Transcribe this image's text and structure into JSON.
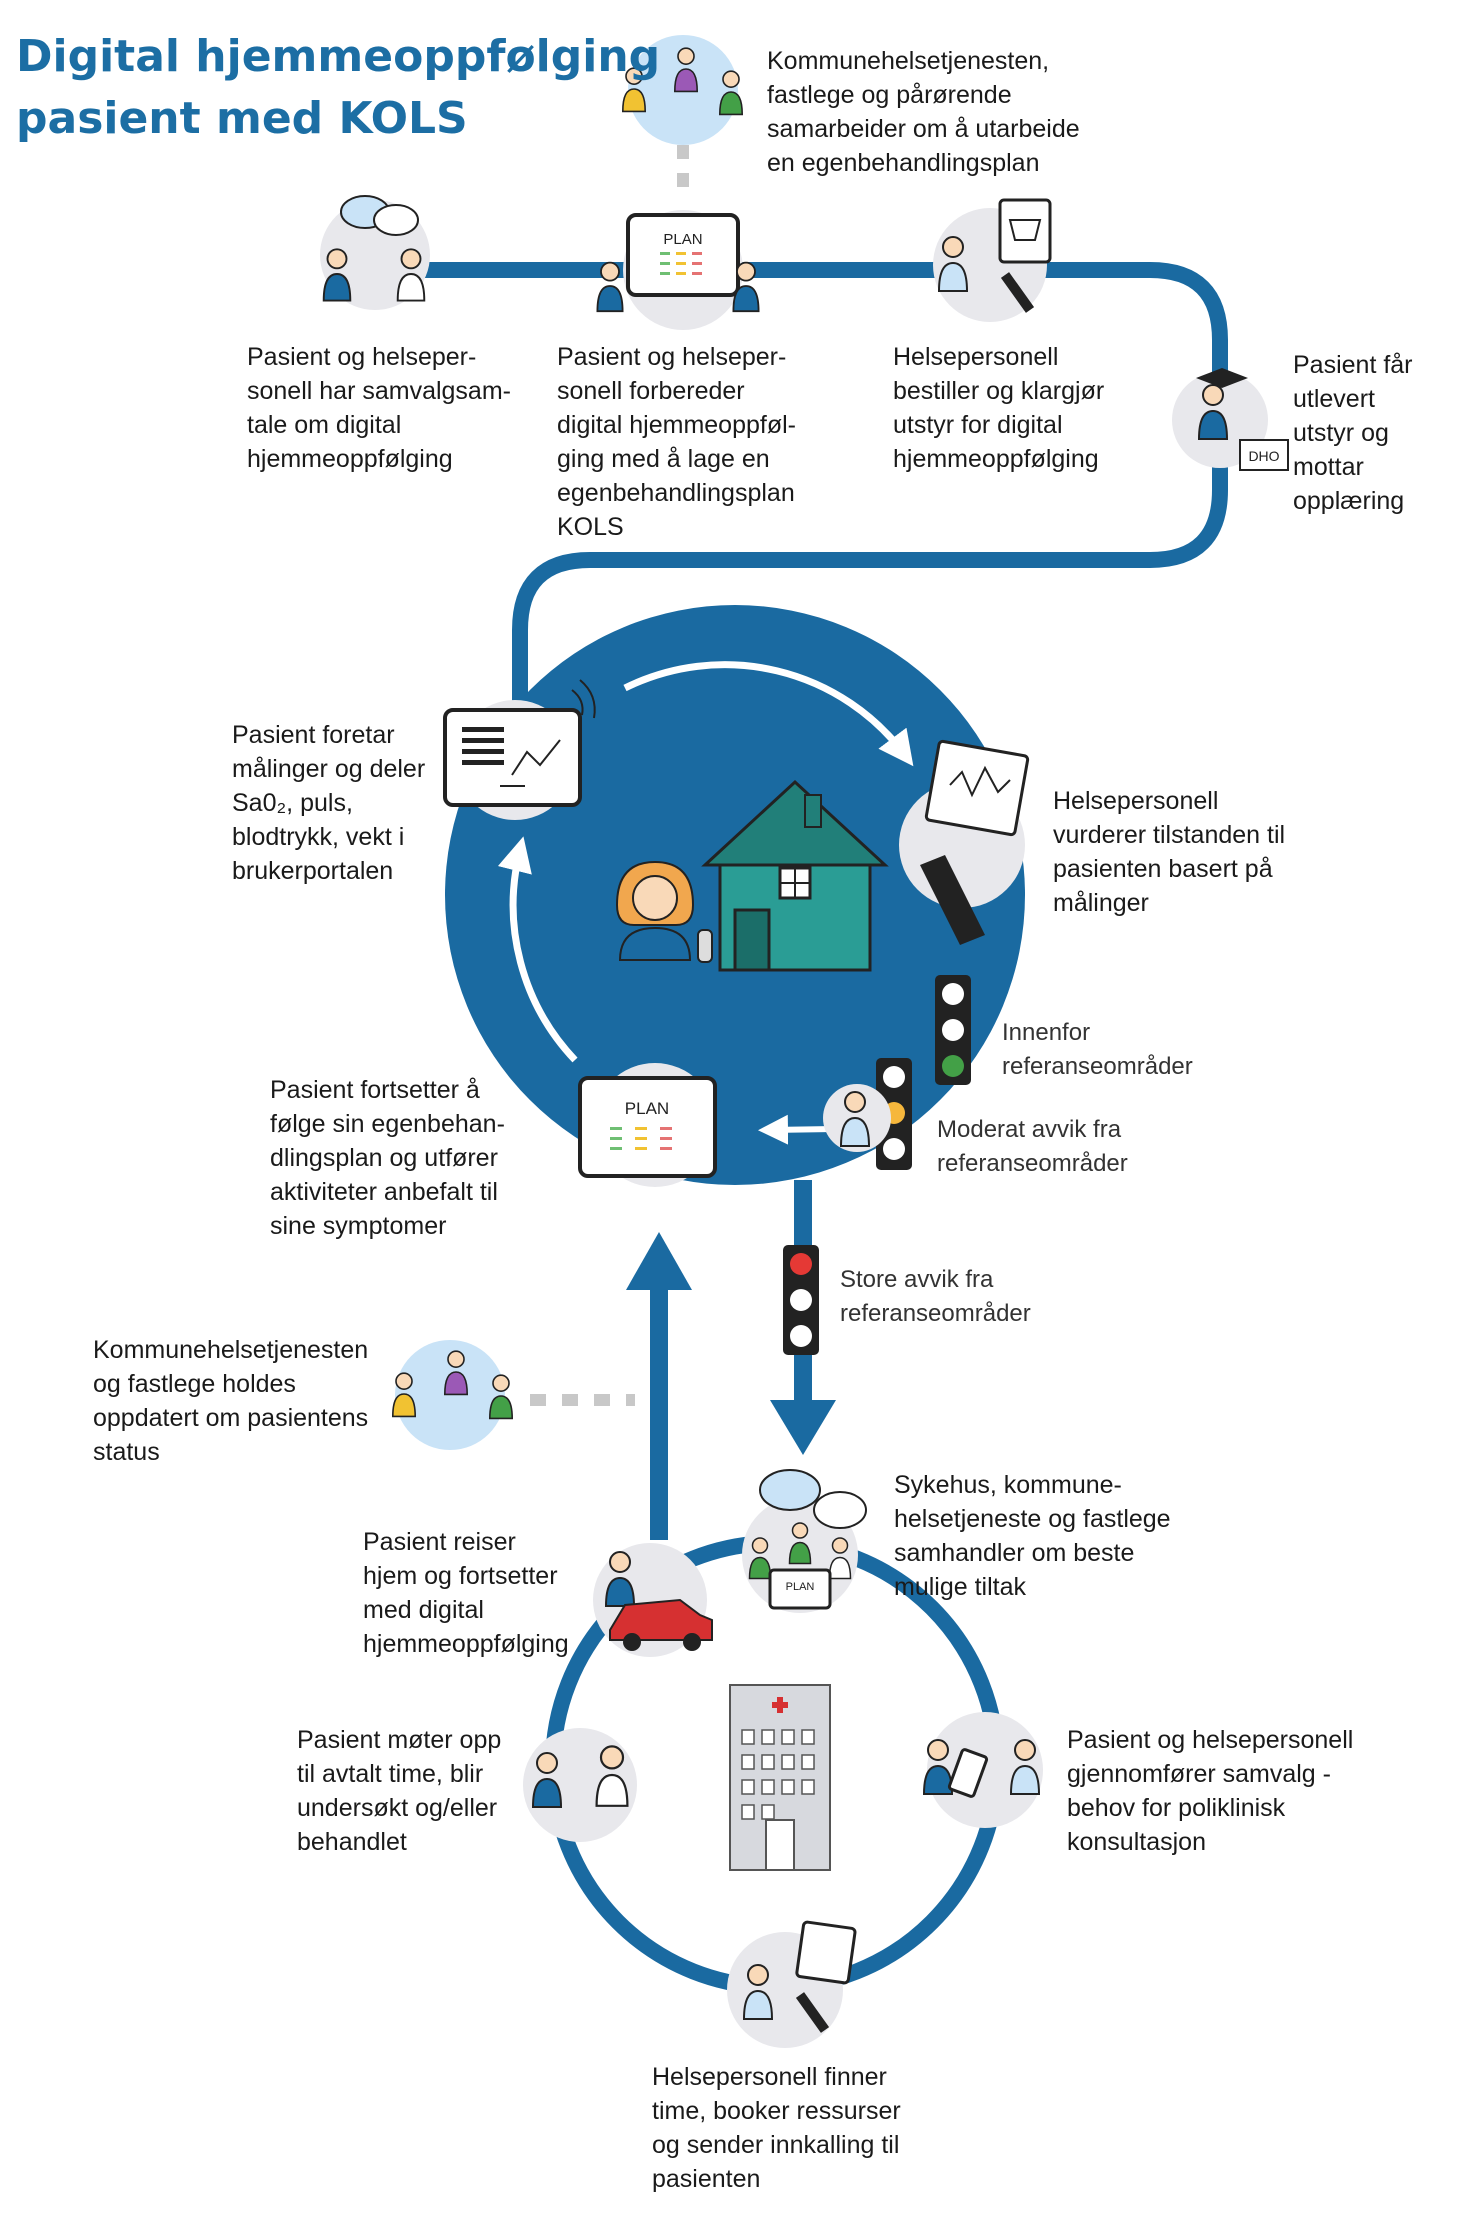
{
  "title": {
    "line1": "Digital hjemmeoppfølging",
    "line2": "pasient med KOLS"
  },
  "colors": {
    "title": "#1c6ea4",
    "flow_line": "#1a6aa1",
    "big_circle": "#1a6aa1",
    "node_circle": "#e8e8ec",
    "collab_circle": "#c9e3f7",
    "house": "#2a9d95",
    "car": "#d63031",
    "light_red": "#e53935",
    "light_yellow": "#f6b73c",
    "light_green": "#43a047",
    "plan_red": "#e57373",
    "plan_yellow": "#f1c232",
    "plan_green": "#6fbf73"
  },
  "steps": {
    "collab_top": {
      "icon": "three-people-icon",
      "lines": [
        "Kommunehelsetjenesten,",
        "fastlege og pårørende",
        "samarbeider om å utarbeide",
        "en egenbehandlingsplan"
      ]
    },
    "shared_decision": {
      "icon": "conversation-icon",
      "lines": [
        "Pasient og helseper-",
        "sonell har samvalgsam-",
        "tale om digital",
        "hjemmeoppfølging"
      ]
    },
    "plan_prep": {
      "icon": "plan-tablet-icon",
      "plan_text": "PLAN",
      "lines": [
        "Pasient og helseper-",
        "sonell forbereder",
        "digital hjemmeoppføl-",
        "ging med å lage en",
        "egenbehandlingsplan",
        "KOLS"
      ]
    },
    "order_equipment": {
      "icon": "shopping-cart-computer-icon",
      "lines": [
        "Helsepersonell",
        "bestiller og klargjør",
        "utstyr for digital",
        "hjemmeoppfølging"
      ]
    },
    "training": {
      "icon": "graduation-cap-icon",
      "badge": "DHO",
      "lines": [
        "Pasient får",
        "utlevert",
        "utstyr og",
        "mottar",
        "opplæring"
      ]
    },
    "measurements": {
      "icon": "tablet-chart-icon",
      "lines": [
        "Pasient foretar",
        "målinger og deler",
        "Sa0₂, puls,",
        "blodtrykk, vekt i",
        "brukerportalen"
      ]
    },
    "assessment": {
      "icon": "monitor-graph-icon",
      "lines": [
        "Helsepersonell",
        "vurderer tilstanden til",
        "pasienten basert på",
        "målinger"
      ]
    },
    "within_range": {
      "icon": "traffic-light-green-icon",
      "lines": [
        "Innenfor",
        "referanseområder"
      ]
    },
    "moderate": {
      "icon": "traffic-light-yellow-icon",
      "lines": [
        "Moderat avvik fra",
        "referanseområder"
      ]
    },
    "large": {
      "icon": "traffic-light-red-icon",
      "lines": [
        "Store avvik fra",
        "referanseområder"
      ]
    },
    "continue_plan": {
      "icon": "plan-tablet-icon",
      "plan_text": "PLAN",
      "lines": [
        "Pasient fortsetter å",
        "følge sin egenbehan-",
        "dlingsplan og utfører",
        "aktiviteter anbefalt til",
        "sine symptomer"
      ]
    },
    "informed": {
      "icon": "three-people-icon",
      "lines": [
        "Kommunehelsetjenesten",
        "og fastlege holdes",
        "oppdatert om pasientens",
        "status"
      ]
    },
    "hospital_collab": {
      "icon": "team-plan-icon",
      "plan_text": "PLAN",
      "lines": [
        "Sykehus, kommune-",
        "helsetjeneste og fastlege",
        "samhandler om beste",
        "mulige tiltak"
      ]
    },
    "outpatient": {
      "icon": "tablet-headset-icon",
      "lines": [
        "Pasient og helsepersonell",
        "gjennomfører samvalg -",
        "behov for poliklinisk",
        "konsultasjon"
      ]
    },
    "booking": {
      "icon": "computer-icon",
      "lines": [
        "Helsepersonell finner",
        "time, booker ressurser",
        "og sender innkalling til",
        "pasienten"
      ]
    },
    "appointment": {
      "icon": "doctor-patient-icon",
      "lines": [
        "Pasient møter opp",
        "til avtalt time, blir",
        "undersøkt og/eller",
        "behandlet"
      ]
    },
    "travel_home": {
      "icon": "car-icon",
      "lines": [
        "Pasient reiser",
        "hjem og fortsetter",
        "med digital",
        "hjemmeoppfølging"
      ]
    }
  }
}
